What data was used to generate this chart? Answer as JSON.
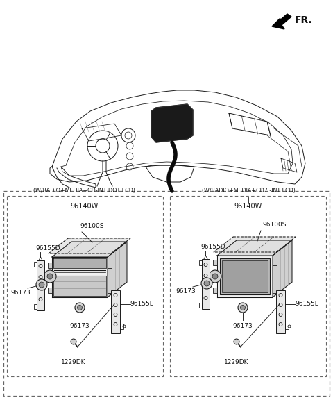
{
  "bg_color": "#ffffff",
  "fr_label": "FR.",
  "box1_label": "(W/RADIO+MEDIA+CD-INT DOT LCD)",
  "box2_label": "(W/RADIO+MEDIA+CD7 -INT LCD)",
  "box1_part": "96140W",
  "box2_part": "96140W",
  "lc": "#1a1a1a",
  "tc": "#111111",
  "fig_width": 4.8,
  "fig_height": 5.76,
  "dpi": 100
}
